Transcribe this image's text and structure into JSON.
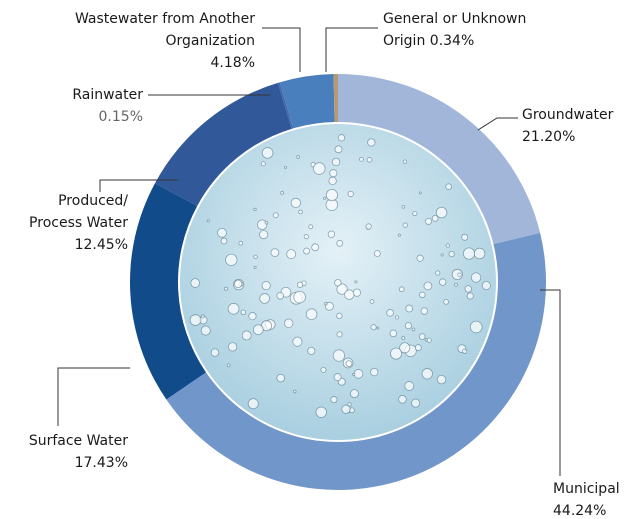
{
  "chart_data": {
    "type": "donut",
    "categories": [
      "Groundwater",
      "Municipal",
      "Surface Water",
      "Produced/ Process Water",
      "Rainwater",
      "Wastewater from Another Organization",
      "General or Unknown Origin"
    ],
    "values": [
      21.2,
      44.24,
      17.43,
      12.45,
      0.15,
      4.18,
      0.34
    ],
    "value_labels": [
      "21.20%",
      "44.24%",
      "17.43%",
      "12.45%",
      "0.15%",
      "4.18%",
      "0.34%"
    ],
    "colors": [
      "#a1b6d9",
      "#7196c9",
      "#124b8a",
      "#31599a",
      "#3d6aa8",
      "#4a7fbd",
      "#b89a72"
    ]
  }
}
